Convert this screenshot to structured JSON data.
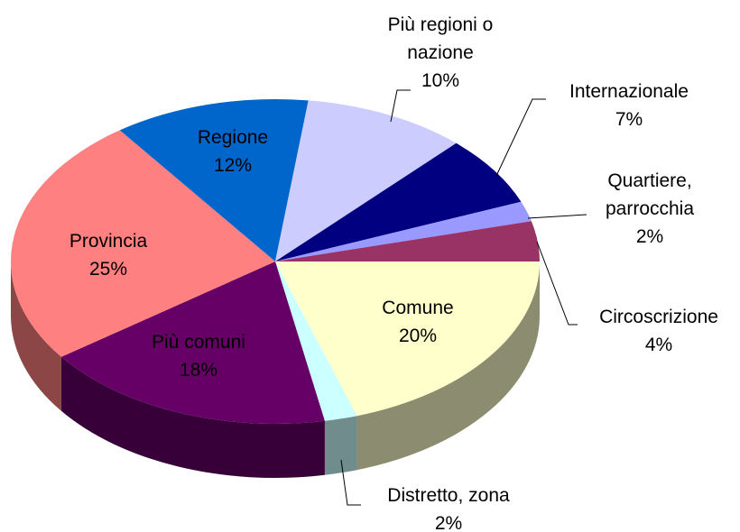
{
  "chart_data": {
    "type": "pie",
    "categories": [
      "Comune",
      "Distretto, zona",
      "Più comuni",
      "Provincia",
      "Regione",
      "Più regioni o nazione",
      "Internazionale",
      "Quartiere, parrocchia",
      "Circoscrizione"
    ],
    "values": [
      20,
      2,
      18,
      25,
      12,
      10,
      7,
      2,
      4
    ],
    "value_labels": [
      "20%",
      "2%",
      "18%",
      "25%",
      "12%",
      "10%",
      "7%",
      "2%",
      "4%"
    ],
    "colors": [
      "#ffffcc",
      "#ccffff",
      "#660066",
      "#ff8080",
      "#0066cc",
      "#ccccff",
      "#000080",
      "#9999ff",
      "#993366"
    ]
  }
}
